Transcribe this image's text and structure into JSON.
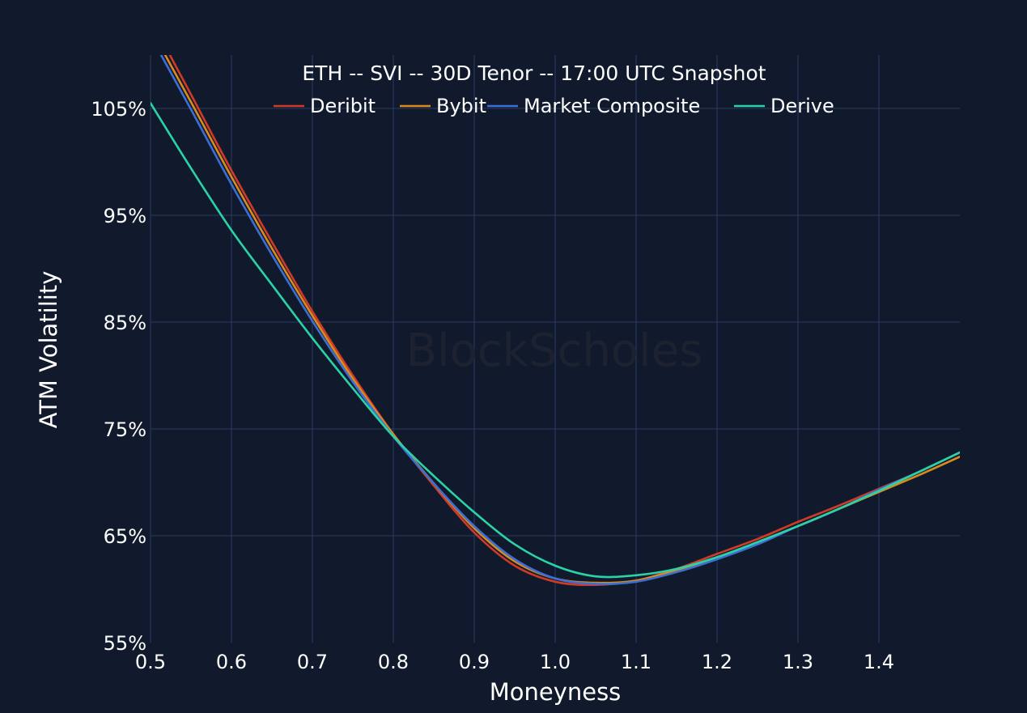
{
  "chart_data": {
    "type": "line",
    "title": "ETH -- SVI -- 30D Tenor -- 17:00 UTC Snapshot",
    "xlabel": "Moneyness",
    "ylabel": "ATM Volatility",
    "xlim": [
      0.5,
      1.5
    ],
    "ylim": [
      55,
      110
    ],
    "x_ticks": [
      0.5,
      0.6,
      0.7,
      0.8,
      0.9,
      1.0,
      1.1,
      1.2,
      1.3,
      1.4
    ],
    "x_tick_labels": [
      "0.5",
      "0.6",
      "0.7",
      "0.8",
      "0.9",
      "1.0",
      "1.1",
      "1.2",
      "1.3",
      "1.4"
    ],
    "y_ticks": [
      55,
      65,
      75,
      85,
      95,
      105
    ],
    "y_tick_labels": [
      "55%",
      "65%",
      "75%",
      "85%",
      "95%",
      "105%"
    ],
    "grid": true,
    "legend_position": "top",
    "watermark": "BlockScholes",
    "x": [
      0.5,
      0.55,
      0.6,
      0.65,
      0.7,
      0.75,
      0.8,
      0.85,
      0.9,
      0.95,
      1.0,
      1.05,
      1.1,
      1.15,
      1.2,
      1.25,
      1.3,
      1.35,
      1.4,
      1.45,
      1.5
    ],
    "series": [
      {
        "name": "Deribit",
        "color": "#d03a27",
        "values": [
          113.4,
          106.3,
          99.2,
          92.5,
          86.0,
          80.0,
          74.5,
          69.7,
          65.3,
          62.2,
          60.7,
          60.4,
          60.8,
          61.9,
          63.3,
          64.7,
          66.3,
          67.8,
          69.4,
          71.0,
          72.8
        ]
      },
      {
        "name": "Bybit",
        "color": "#d98c1c",
        "values": [
          112.5,
          105.6,
          98.6,
          91.9,
          85.6,
          79.7,
          74.5,
          69.9,
          65.7,
          62.6,
          61.0,
          60.6,
          60.8,
          61.8,
          62.9,
          64.4,
          65.9,
          67.5,
          69.1,
          70.7,
          72.4
        ]
      },
      {
        "name": "Market Composite",
        "color": "#3b6fd6",
        "values": [
          111.8,
          104.9,
          97.9,
          91.3,
          85.1,
          79.4,
          74.3,
          69.9,
          65.9,
          62.8,
          61.0,
          60.5,
          60.7,
          61.6,
          62.8,
          64.2,
          65.9,
          67.5,
          69.3,
          71.0,
          72.8
        ]
      },
      {
        "name": "Derive",
        "color": "#2ad3a6",
        "values": [
          105.5,
          99.4,
          93.6,
          88.5,
          83.5,
          78.8,
          74.3,
          70.6,
          67.2,
          64.2,
          62.2,
          61.2,
          61.3,
          61.9,
          63.0,
          64.4,
          65.9,
          67.5,
          69.2,
          71.0,
          72.8
        ]
      }
    ]
  }
}
